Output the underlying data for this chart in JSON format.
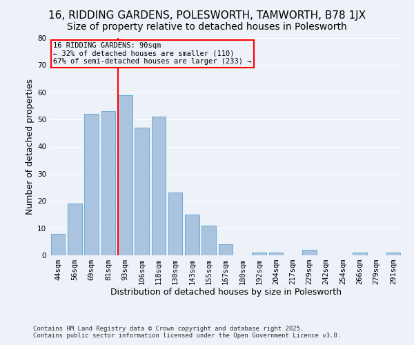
{
  "title1": "16, RIDDING GARDENS, POLESWORTH, TAMWORTH, B78 1JX",
  "title2": "Size of property relative to detached houses in Polesworth",
  "xlabel": "Distribution of detached houses by size in Polesworth",
  "ylabel": "Number of detached properties",
  "categories": [
    "44sqm",
    "56sqm",
    "69sqm",
    "81sqm",
    "93sqm",
    "106sqm",
    "118sqm",
    "130sqm",
    "143sqm",
    "155sqm",
    "167sqm",
    "180sqm",
    "192sqm",
    "204sqm",
    "217sqm",
    "229sqm",
    "242sqm",
    "254sqm",
    "266sqm",
    "279sqm",
    "291sqm"
  ],
  "values": [
    8,
    19,
    52,
    53,
    59,
    47,
    51,
    23,
    15,
    11,
    4,
    0,
    1,
    1,
    0,
    2,
    0,
    0,
    1,
    0,
    1
  ],
  "bar_color": "#aac4e0",
  "bar_edgecolor": "#6aaad4",
  "vline_color": "red",
  "vline_index": 4,
  "ylim": [
    0,
    80
  ],
  "yticks": [
    0,
    10,
    20,
    30,
    40,
    50,
    60,
    70,
    80
  ],
  "annotation_line1": "16 RIDDING GARDENS: 90sqm",
  "annotation_line2": "← 32% of detached houses are smaller (110)",
  "annotation_line3": "67% of semi-detached houses are larger (233) →",
  "annotation_box_color": "red",
  "footer1": "Contains HM Land Registry data © Crown copyright and database right 2025.",
  "footer2": "Contains public sector information licensed under the Open Government Licence v3.0.",
  "background_color": "#edf1f8",
  "grid_color": "#ffffff",
  "title1_fontsize": 11,
  "title2_fontsize": 10,
  "axis_label_fontsize": 9,
  "tick_fontsize": 7.5,
  "annotation_fontsize": 7.5,
  "footer_fontsize": 6.5
}
